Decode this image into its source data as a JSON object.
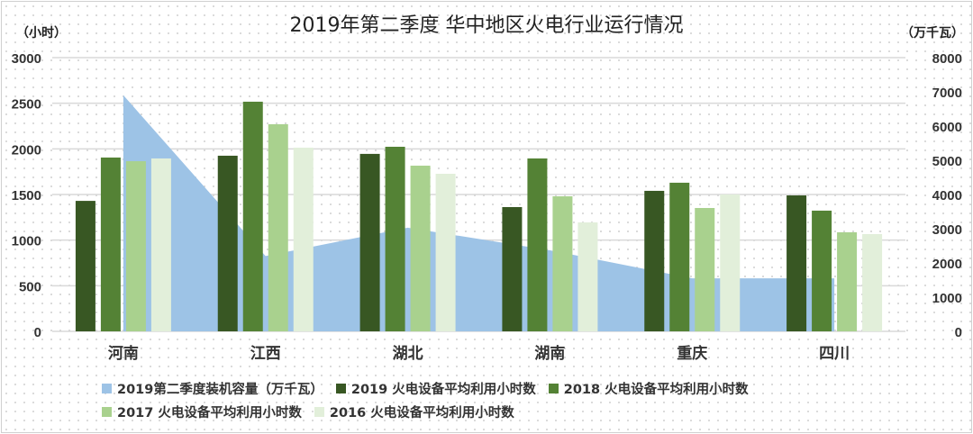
{
  "chart_data": {
    "type": "bar",
    "title": "2019年第二季度  华中地区火电行业运行情况",
    "ylabel_left": "（小时）",
    "ylabel_right": "（万千瓦）",
    "categories": [
      "河南",
      "江西",
      "湖北",
      "湖南",
      "重庆",
      "四川"
    ],
    "ylim_left": [
      0,
      3000
    ],
    "yticks_left": [
      0,
      500,
      1000,
      1500,
      2000,
      2500,
      3000
    ],
    "ylim_right": [
      0,
      8000
    ],
    "yticks_right": [
      0,
      1000,
      2000,
      3000,
      4000,
      5000,
      6000,
      7000,
      8000
    ],
    "grid": true,
    "legend_position": "bottom",
    "area_series": {
      "name": "2019第二季度装机容量（万千瓦）",
      "axis": "right",
      "color": "#9dc3e6",
      "values": [
        6900,
        2200,
        3030,
        2370,
        1550,
        1550
      ]
    },
    "series": [
      {
        "name": "2019 火电设备平均利用小时数",
        "color": "#385723",
        "values": [
          1430,
          1925,
          1945,
          1362,
          1540,
          1490
        ]
      },
      {
        "name": "2018 火电设备平均利用小时数",
        "color": "#548235",
        "values": [
          1905,
          2517,
          2023,
          1895,
          1629,
          1323
        ]
      },
      {
        "name": "2017 火电设备平均利用小时数",
        "color": "#a9d18e",
        "values": [
          1865,
          2270,
          1816,
          1480,
          1352,
          1086
        ]
      },
      {
        "name": "2016 火电设备平均利用小时数",
        "color": "#e2efda",
        "values": [
          1895,
          2013,
          1727,
          1194,
          1500,
          1066
        ]
      }
    ]
  }
}
